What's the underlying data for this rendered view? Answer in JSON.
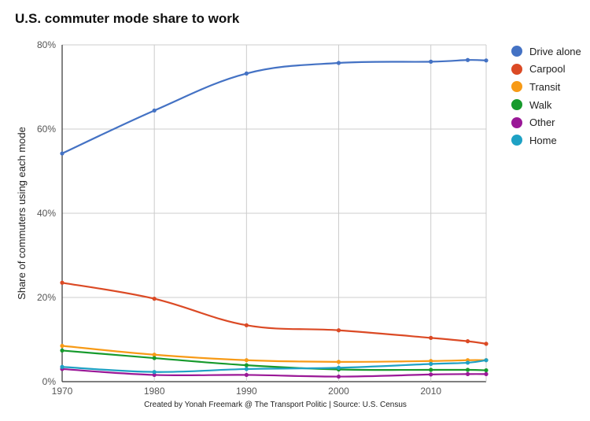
{
  "chart_data": {
    "type": "line",
    "title": "U.S. commuter mode share to work",
    "ylabel": "Share of commuters using each mode",
    "xlabel": "",
    "source": "Created by Yonah Freemark @ The Transport Politic | Source: U.S. Census",
    "xlim": [
      1970,
      2016
    ],
    "ylim": [
      0,
      80
    ],
    "x_ticks": [
      "1970",
      "1980",
      "1990",
      "2000",
      "2010"
    ],
    "y_ticks": [
      "0%",
      "20%",
      "40%",
      "60%",
      "80%"
    ],
    "x": [
      1970,
      1980,
      1990,
      2000,
      2010,
      2014,
      2016
    ],
    "grid": true,
    "legend_position": "right",
    "series": [
      {
        "name": "Drive alone",
        "color": "#4472c4",
        "values": [
          54.2,
          64.4,
          73.2,
          75.7,
          76.0,
          76.4,
          76.3
        ]
      },
      {
        "name": "Carpool",
        "color": "#db4a25",
        "values": [
          23.5,
          19.7,
          13.4,
          12.2,
          10.4,
          9.6,
          9.0
        ]
      },
      {
        "name": "Transit",
        "color": "#f79a16",
        "values": [
          8.5,
          6.4,
          5.1,
          4.7,
          4.9,
          5.1,
          5.1
        ]
      },
      {
        "name": "Walk",
        "color": "#169a2c",
        "values": [
          7.4,
          5.6,
          3.9,
          2.9,
          2.8,
          2.8,
          2.7
        ]
      },
      {
        "name": "Other",
        "color": "#9a1897",
        "values": [
          3.0,
          1.6,
          1.6,
          1.2,
          1.7,
          1.8,
          1.8
        ]
      },
      {
        "name": "Home",
        "color": "#1ea1c4",
        "values": [
          3.5,
          2.3,
          3.0,
          3.3,
          4.2,
          4.5,
          5.1
        ]
      }
    ]
  }
}
